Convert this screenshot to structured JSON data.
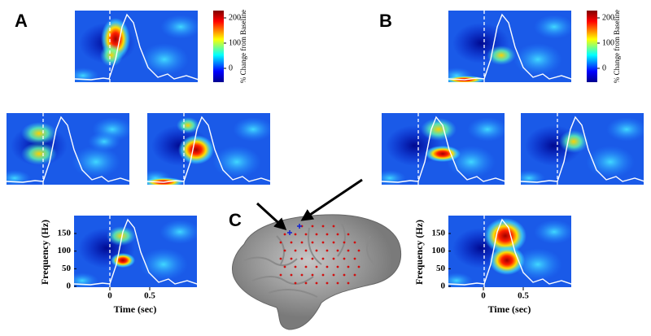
{
  "panels": {
    "A": {
      "label": "A",
      "colorbar": {
        "label": "% Change from Baseline",
        "ticks": [
          200,
          100,
          0
        ]
      },
      "y_axis": {
        "label": "Frequency (Hz)",
        "ticks": [
          150,
          100,
          50,
          0
        ]
      },
      "x_axis": {
        "label": "Time (sec)",
        "ticks": [
          0,
          0.5
        ]
      }
    },
    "B": {
      "label": "B",
      "colorbar": {
        "label": "% Change from Baseline",
        "ticks": [
          200,
          100,
          0
        ]
      },
      "y_axis": {
        "label": "Frequency (Hz)",
        "ticks": [
          150,
          100,
          50,
          0
        ]
      },
      "x_axis": {
        "label": "Time (sec)",
        "ticks": [
          0,
          0.5
        ]
      }
    },
    "C": {
      "label": "C"
    }
  }
}
